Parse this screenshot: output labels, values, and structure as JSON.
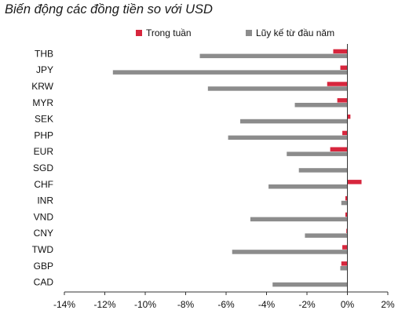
{
  "chart_data": {
    "type": "bar",
    "orientation": "horizontal",
    "title": "Biến động các đồng tiền so với USD",
    "categories": [
      "THB",
      "JPY",
      "KRW",
      "MYR",
      "SEK",
      "PHP",
      "EUR",
      "SGD",
      "CHF",
      "INR",
      "VND",
      "CNY",
      "TWD",
      "GBP",
      "CAD"
    ],
    "series": [
      {
        "name": "Trong tuần",
        "color": "#d7263d",
        "values": [
          -0.7,
          -0.35,
          -1.0,
          -0.5,
          0.15,
          -0.25,
          -0.85,
          0.0,
          0.7,
          -0.1,
          -0.1,
          -0.05,
          -0.25,
          -0.3,
          0.0
        ]
      },
      {
        "name": "Lũy kế từ đầu năm",
        "color": "#8c8c8c",
        "values": [
          -7.3,
          -11.6,
          -6.9,
          -2.6,
          -5.3,
          -5.9,
          -3.0,
          -2.4,
          -3.9,
          -0.3,
          -4.8,
          -2.1,
          -5.7,
          -0.35,
          -3.7
        ]
      }
    ],
    "xlim": [
      -14,
      2
    ],
    "xticks": [
      -14,
      -12,
      -10,
      -8,
      -6,
      -4,
      -2,
      0,
      2
    ],
    "xtick_format": "percent",
    "legend_position": "top",
    "grid": false
  }
}
